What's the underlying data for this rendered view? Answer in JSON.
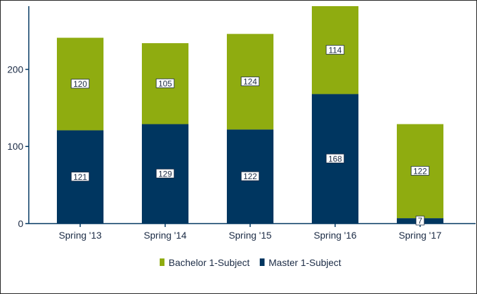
{
  "chart_data": {
    "type": "bar",
    "stacked": true,
    "categories": [
      "Spring '13",
      "Spring '14",
      "Spring '15",
      "Spring '16",
      "Spring '17"
    ],
    "series": [
      {
        "name": "Master 1-Subject",
        "values": [
          121,
          129,
          122,
          168,
          7
        ],
        "color": "#003660"
      },
      {
        "name": "Bachelor 1-Subject",
        "values": [
          120,
          105,
          124,
          114,
          122
        ],
        "color": "#8fac10"
      }
    ],
    "ylim": [
      0,
      282
    ],
    "yticks": [
      0,
      100,
      200
    ],
    "legend_position": "bottom",
    "legend_order": [
      "Bachelor 1-Subject",
      "Master 1-Subject"
    ],
    "grid": false
  }
}
